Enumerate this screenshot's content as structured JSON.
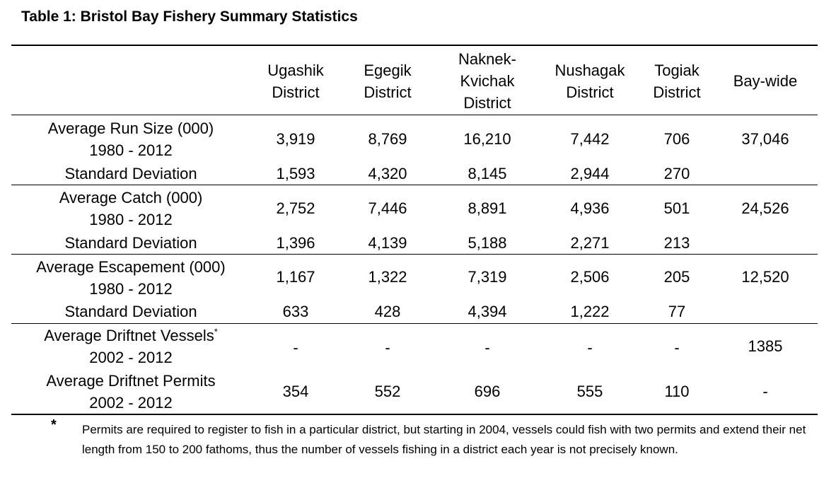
{
  "title": "Table 1:  Bristol Bay Fishery Summary Statistics",
  "columns": [
    {
      "key": "ugashik",
      "line1": "Ugashik",
      "line2": "District",
      "line3": ""
    },
    {
      "key": "egegik",
      "line1": "Egegik",
      "line2": "District",
      "line3": ""
    },
    {
      "key": "naknek",
      "line1": "Naknek-",
      "line2": "Kvichak",
      "line3": "District"
    },
    {
      "key": "nushagak",
      "line1": "Nushagak",
      "line2": "District",
      "line3": ""
    },
    {
      "key": "togiak",
      "line1": "Togiak",
      "line2": "District",
      "line3": ""
    },
    {
      "key": "bay",
      "line1": "Bay-wide",
      "line2": "",
      "line3": ""
    }
  ],
  "groups": {
    "run": {
      "label_line1": "Average Run Size (000)",
      "label_line2": "1980 - 2012",
      "avg": [
        "3,919",
        "8,769",
        "16,210",
        "7,442",
        "706",
        "37,046"
      ],
      "sd_label": "Standard Deviation",
      "sd": [
        "1,593",
        "4,320",
        "8,145",
        "2,944",
        "270",
        ""
      ]
    },
    "catch": {
      "label_line1": "Average Catch (000)",
      "label_line2": "1980 - 2012",
      "avg": [
        "2,752",
        "7,446",
        "8,891",
        "4,936",
        "501",
        "24,526"
      ],
      "sd_label": "Standard Deviation",
      "sd": [
        "1,396",
        "4,139",
        "5,188",
        "2,271",
        "213",
        ""
      ]
    },
    "escapement": {
      "label_line1": "Average Escapement (000)",
      "label_line2": "1980 - 2012",
      "avg": [
        "1,167",
        "1,322",
        "7,319",
        "2,506",
        "205",
        "12,520"
      ],
      "sd_label": "Standard Deviation",
      "sd": [
        "633",
        "428",
        "4,394",
        "1,222",
        "77",
        ""
      ]
    },
    "vessels": {
      "label_line1": "Average Driftnet Vessels",
      "label_sup": "*",
      "label_line2": "2002 - 2012",
      "values": [
        "-",
        "-",
        "-",
        "-",
        "-",
        "1385"
      ]
    },
    "permits": {
      "label_line1": "Average Driftnet Permits",
      "label_line2": "2002 - 2012",
      "values": [
        "354",
        "552",
        "696",
        "555",
        "110",
        "-"
      ]
    }
  },
  "footnote": {
    "mark": "*",
    "text": "Permits are required to register to fish in a particular district, but starting in 2004, vessels could fish with two permits and extend their net length from 150 to 200 fathoms, thus the number of vessels fishing in a district each year is not precisely known."
  }
}
